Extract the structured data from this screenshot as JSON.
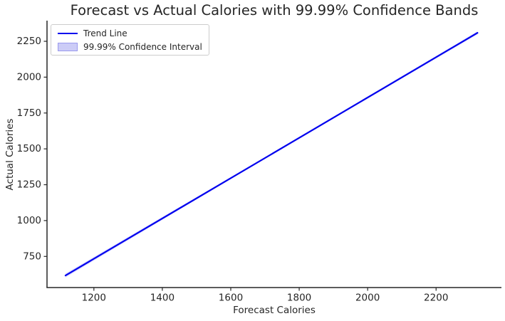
{
  "chart_data": {
    "type": "line",
    "title": "Forecast vs Actual Calories with 99.99% Confidence Bands",
    "xlabel": "Forecast Calories",
    "ylabel": "Actual Calories",
    "xlim": [
      1063,
      2391
    ],
    "ylim": [
      533,
      2394
    ],
    "xticks": [
      1200,
      1400,
      1600,
      1800,
      2000,
      2200
    ],
    "yticks": [
      750,
      1000,
      1250,
      1500,
      1750,
      2000,
      2250
    ],
    "grid": false,
    "spines": [
      "left",
      "bottom"
    ],
    "legend_position": "upper-left",
    "series": [
      {
        "name": "Trend Line",
        "type": "line",
        "color": "#0000ee",
        "x": [
          1117,
          2321
        ],
        "y": [
          617,
          2309
        ]
      },
      {
        "name": "99.99% Confidence Interval",
        "type": "band",
        "fill": "rgba(40,40,255,0.16)",
        "x": [
          1117,
          1719,
          2321
        ],
        "upper": [
          631,
          1468,
          2319
        ],
        "lower": [
          603,
          1459,
          2299
        ]
      }
    ],
    "legend": [
      {
        "label": "Trend Line",
        "swatch": "line",
        "color": "#0000ee"
      },
      {
        "label": "99.99% Confidence Interval",
        "swatch": "patch",
        "color": "#ccccf7"
      }
    ]
  },
  "colors": {
    "background": "#ffffff",
    "axis": "#262626",
    "text": "#262626",
    "trend_line": "#0000ee",
    "confidence_band_fill": "rgba(40,40,255,0.16)"
  }
}
